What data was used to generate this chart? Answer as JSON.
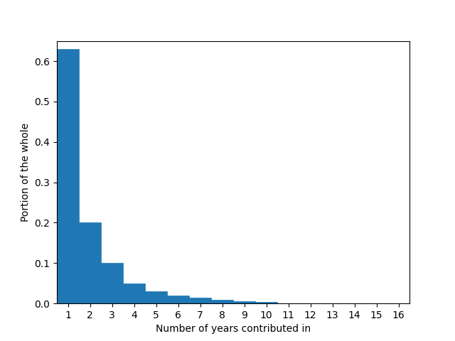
{
  "categories": [
    1,
    2,
    3,
    4,
    5,
    6,
    7,
    8,
    9,
    10,
    11,
    12,
    13,
    14,
    15,
    16
  ],
  "values": [
    0.63,
    0.2,
    0.1,
    0.05,
    0.03,
    0.02,
    0.015,
    0.01,
    0.005,
    0.003,
    0.001,
    0.0008,
    0.0005,
    0.0003,
    0.0001,
    5e-05
  ],
  "bar_color": "#1f77b4",
  "xlabel": "Number of years contributed in",
  "ylabel": "Portion of the whole",
  "xlim": [
    0.5,
    16.5
  ],
  "ylim": [
    0,
    0.6500000000000001
  ],
  "figsize": [
    6.4,
    4.8
  ],
  "dpi": 100,
  "yticks": [
    0.0,
    0.1,
    0.2,
    0.3,
    0.4,
    0.5,
    0.6
  ]
}
